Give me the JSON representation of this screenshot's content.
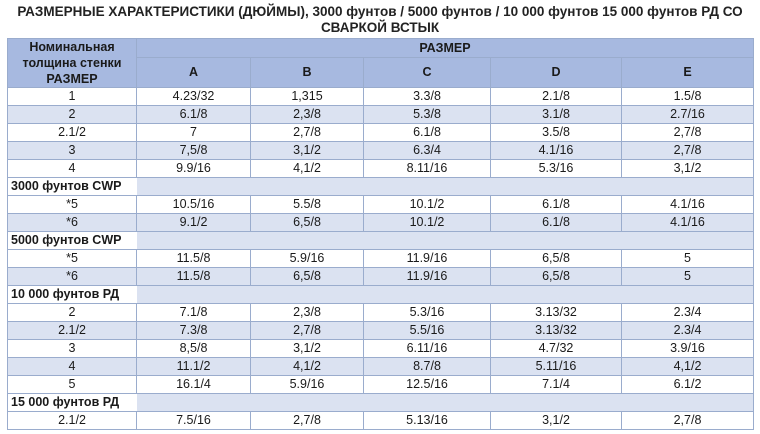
{
  "title": "РАЗМЕРНЫЕ ХАРАКТЕРИСТИКИ (ДЮЙМЫ), 3000 фунтов / 5000 фунтов / 10 000 фунтов 15 000 фунтов РД СО СВАРКОЙ ВСТЫК",
  "header": {
    "nominal": "Номинальная толщина стенки РАЗМЕР",
    "size": "РАЗМЕР",
    "columns": [
      "A",
      "B",
      "C",
      "D",
      "E"
    ]
  },
  "groups": [
    {
      "label": "",
      "rows": [
        [
          "1",
          "4.23/32",
          "1,315",
          "3.3/8",
          "2.1/8",
          "1.5/8"
        ],
        [
          "2",
          "6.1/8",
          "2,3/8",
          "5.3/8",
          "3.1/8",
          "2.7/16"
        ],
        [
          "2.1/2",
          "7",
          "2,7/8",
          "6.1/8",
          "3.5/8",
          "2,7/8"
        ],
        [
          "3",
          "7,5/8",
          "3,1/2",
          "6.3/4",
          "4.1/16",
          "2,7/8"
        ],
        [
          "4",
          "9.9/16",
          "4,1/2",
          "8.11/16",
          "5.3/16",
          "3,1/2"
        ]
      ]
    },
    {
      "label": "3000 фунтов CWP",
      "rows": [
        [
          "*5",
          "10.5/16",
          "5.5/8",
          "10.1/2",
          "6.1/8",
          "4.1/16"
        ],
        [
          "*6",
          "9.1/2",
          "6,5/8",
          "10.1/2",
          "6.1/8",
          "4.1/16"
        ]
      ]
    },
    {
      "label": "5000 фунтов CWP",
      "rows": [
        [
          "*5",
          "11.5/8",
          "5.9/16",
          "11.9/16",
          "6,5/8",
          "5"
        ],
        [
          "*6",
          "11.5/8",
          "6,5/8",
          "11.9/16",
          "6,5/8",
          "5"
        ]
      ]
    },
    {
      "label": "10 000 фунтов РД",
      "rows": [
        [
          "2",
          "7.1/8",
          "2,3/8",
          "5.3/16",
          "3.13/32",
          "2.3/4"
        ],
        [
          "2.1/2",
          "7.3/8",
          "2,7/8",
          "5.5/16",
          "3.13/32",
          "2.3/4"
        ],
        [
          "3",
          "8,5/8",
          "3,1/2",
          "6.11/16",
          "4.7/32",
          "3.9/16"
        ],
        [
          "4",
          "11.1/2",
          "4,1/2",
          "8.7/8",
          "5.11/16",
          "4,1/2"
        ],
        [
          "5",
          "16.1/4",
          "5.9/16",
          "12.5/16",
          "7.1/4",
          "6.1/2"
        ]
      ]
    },
    {
      "label": "15 000 фунтов РД",
      "rows": [
        [
          "2.1/2",
          "7.5/16",
          "2,7/8",
          "5.13/16",
          "3,1/2",
          "2,7/8"
        ]
      ]
    }
  ]
}
